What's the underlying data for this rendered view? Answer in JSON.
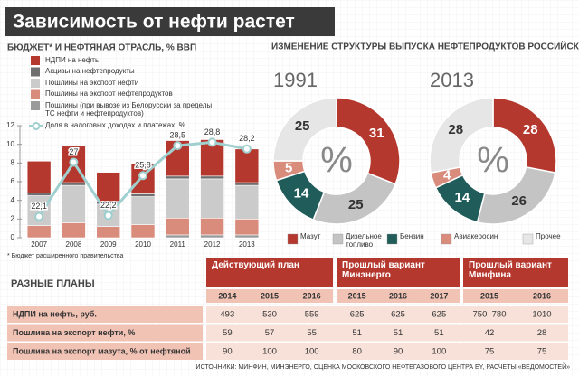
{
  "title": "Зависимость от нефти растет",
  "chart_data": [
    {
      "type": "bar",
      "title": "БЮДЖЕТ* И НЕФТЯНАЯ ОТРАСЛЬ, % ВВП",
      "footnote": "* Бюджет расширенного правительства",
      "categories": [
        "2007",
        "2008",
        "2009",
        "2010",
        "2011",
        "2012",
        "2013"
      ],
      "series": [
        {
          "name": "НДПИ на нефть",
          "color": "#b5382f",
          "values": [
            3.4,
            3.9,
            3.1,
            3.2,
            3.8,
            3.9,
            3.6
          ]
        },
        {
          "name": "Акцизы на нефтепродукты",
          "color": "#6f6f6f",
          "values": [
            0.3,
            0.3,
            0.3,
            0.3,
            0.3,
            0.3,
            0.3
          ]
        },
        {
          "name": "Пошлины на экспорт нефти",
          "color": "#cbcbcb",
          "values": [
            3.2,
            4.0,
            2.4,
            3.0,
            4.2,
            4.2,
            3.6
          ]
        },
        {
          "name": "Пошлины на экспорт нефтепродуктов",
          "color": "#d98b7c",
          "values": [
            1.3,
            1.6,
            1.2,
            1.4,
            1.8,
            1.8,
            1.7
          ]
        },
        {
          "name": "Пошлины (при вывозе из Белоруссии за пределы ТС нефти и нефтепродуктов)",
          "color": "#9a9a9a",
          "values": [
            0,
            0,
            0,
            0,
            0.3,
            0.3,
            0.3
          ]
        },
        {
          "name": "Доля в налоговых доходах и платежах, %",
          "color": "#9fcfcf",
          "type": "line",
          "axis": "y2",
          "values": [
            22.1,
            27,
            22.2,
            25.8,
            28.5,
            28.8,
            28.2
          ],
          "value_labels": [
            "22,1",
            "27",
            "22,2",
            "25,8",
            "28,5",
            "28,8",
            "28,2"
          ]
        }
      ],
      "ylim": [
        0,
        12
      ],
      "yticks": [
        0,
        2,
        4,
        6,
        8,
        10,
        12
      ],
      "y2lim": [
        20.2,
        30.3
      ]
    },
    {
      "type": "donut",
      "title": "ИЗМЕНЕНИЕ СТРУКТУРЫ ВЫПУСКА НЕФТЕПРОДУКТОВ РОССИЙСКИМИ НПЗ",
      "center_label": "%",
      "categories": [
        "Мазут",
        "Дизельное топливо",
        "Бензин",
        "Авиакеросин",
        "Прочее"
      ],
      "colors": [
        "#b5382f",
        "#c4c4c4",
        "#1f5c5a",
        "#d98b7c",
        "#e6e6e6"
      ],
      "series": [
        {
          "name": "1991",
          "values": [
            31,
            25,
            14,
            5,
            25
          ]
        },
        {
          "name": "2013",
          "values": [
            28,
            26,
            14,
            4,
            28
          ]
        }
      ]
    }
  ],
  "table": {
    "title": "РАЗНЫЕ ПЛАНЫ",
    "groups": [
      {
        "name": "Действующий план",
        "years": [
          2014,
          2015,
          2016
        ]
      },
      {
        "name": "Прошлый вариант Минэнерго",
        "years": [
          2015,
          2016,
          2017
        ]
      },
      {
        "name": "Прошлый вариант Минфина",
        "years": [
          2015,
          2016
        ]
      }
    ],
    "rows": [
      {
        "label": "НДПИ на нефть, руб.",
        "cells": [
          493,
          530,
          559,
          625,
          625,
          625,
          "750–780",
          1010
        ]
      },
      {
        "label": "Пошлина на экспорт нефти, %",
        "cells": [
          59,
          57,
          55,
          51,
          51,
          51,
          42,
          28
        ]
      },
      {
        "label": "Пошлина на экспорт мазута, % от нефтяной",
        "cells": [
          90,
          100,
          100,
          80,
          90,
          100,
          75,
          75
        ]
      }
    ]
  },
  "sources": "ИСТОЧНИКИ: МИНФИН, МИНЭНЕРГО, ОЦЕНКА МОСКОВСКОГО НЕФТЕГАЗОВОГО ЦЕНТРА EY, РАСЧЕТЫ «ВЕДОМОСТЕЙ»"
}
